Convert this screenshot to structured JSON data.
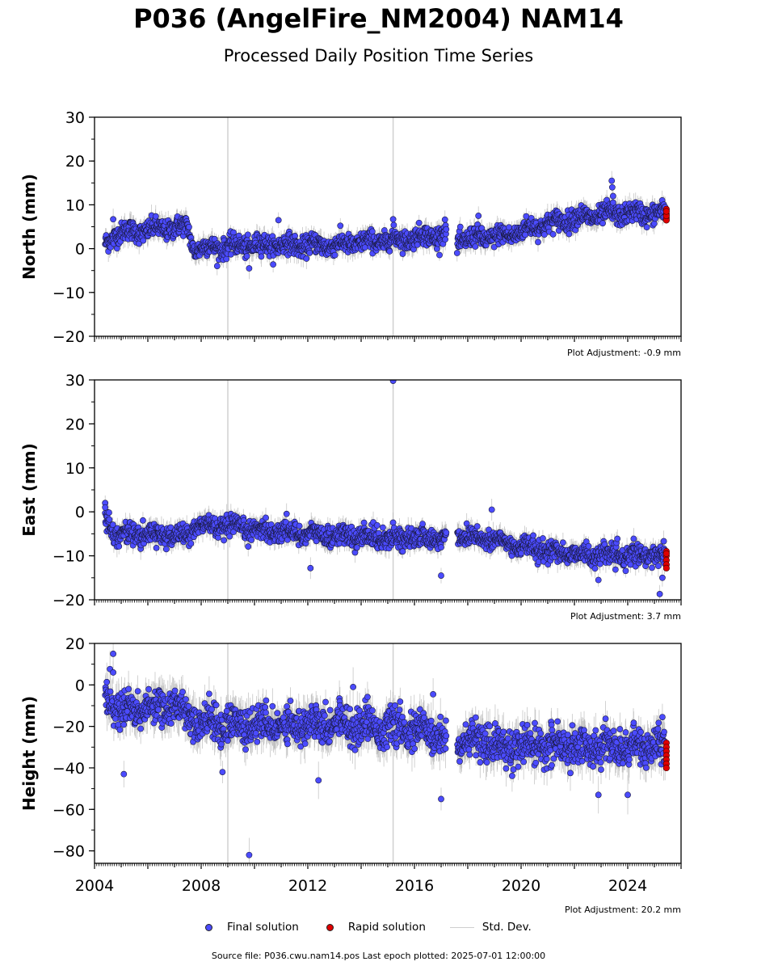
{
  "title": "P036 (AngelFire_NM2004) NAM14",
  "subtitle": "Processed Daily Position Time Series",
  "legend": {
    "final": "Final solution",
    "rapid": "Rapid solution",
    "std": "Std. Dev."
  },
  "source": "Source file: P036.cwu.nam14.pos  Last epoch plotted: 2025-07-01 12:00:00",
  "colors": {
    "final": "#4b4bff",
    "rapid": "#e00000",
    "std": "#b8b8b8",
    "marker_edge": "#1a1a40",
    "event_line": "#d0d0d0"
  },
  "chart_data": [
    {
      "type": "scatter",
      "ylabel": "North (mm)",
      "ylim": [
        -20,
        30
      ],
      "yticks": [
        -20,
        -10,
        0,
        10,
        20,
        30
      ],
      "xlim": [
        2004.0,
        2026.0
      ],
      "xticks": [
        2004,
        2008,
        2012,
        2016,
        2020,
        2024
      ],
      "show_xtick_labels": false,
      "adjustment": "Plot Adjustment: -0.9 mm",
      "event_lines": [
        2009.0,
        2015.2
      ],
      "gaps": [
        [
          2017.2,
          2017.6
        ]
      ],
      "trend": [
        [
          2004.4,
          1.0
        ],
        [
          2004.8,
          3.5
        ],
        [
          2006.5,
          4.5
        ],
        [
          2007.5,
          5.0
        ],
        [
          2007.7,
          0.0
        ],
        [
          2010.0,
          0.8
        ],
        [
          2013.0,
          0.8
        ],
        [
          2016.0,
          2.5
        ],
        [
          2017.2,
          3.5
        ],
        [
          2017.6,
          2.0
        ],
        [
          2019.5,
          3.0
        ],
        [
          2020.5,
          5.0
        ],
        [
          2022.0,
          7.0
        ],
        [
          2023.5,
          8.0
        ],
        [
          2025.4,
          8.0
        ]
      ],
      "noise": 1.6,
      "outliers": [
        [
          2004.7,
          6.7
        ],
        [
          2009.8,
          -4.5
        ],
        [
          2010.9,
          6.5
        ],
        [
          2015.2,
          6.7
        ],
        [
          2018.4,
          7.5
        ],
        [
          2023.4,
          15.5
        ],
        [
          2023.42,
          14.0
        ],
        [
          2023.45,
          12.0
        ],
        [
          2023.45,
          10.5
        ],
        [
          2017.6,
          -1.0
        ]
      ],
      "rapid": [
        [
          2025.45,
          9.0
        ],
        [
          2025.45,
          8.0
        ],
        [
          2025.45,
          7.0
        ],
        [
          2025.45,
          6.5
        ],
        [
          2025.45,
          7.5
        ],
        [
          2025.45,
          8.5
        ]
      ]
    },
    {
      "type": "scatter",
      "ylabel": "East (mm)",
      "ylim": [
        -20,
        30
      ],
      "yticks": [
        -20,
        -10,
        0,
        10,
        20,
        30
      ],
      "xlim": [
        2004.0,
        2026.0
      ],
      "xticks": [
        2004,
        2008,
        2012,
        2016,
        2020,
        2024
      ],
      "show_xtick_labels": false,
      "adjustment": "Plot Adjustment: 3.7 mm",
      "event_lines": [
        2009.0,
        2015.2
      ],
      "gaps": [
        [
          2017.2,
          2017.6
        ]
      ],
      "trend": [
        [
          2004.4,
          -1.0
        ],
        [
          2004.8,
          -5.0
        ],
        [
          2007.6,
          -5.5
        ],
        [
          2007.7,
          -3.0
        ],
        [
          2010.0,
          -4.0
        ],
        [
          2013.0,
          -5.5
        ],
        [
          2016.0,
          -6.0
        ],
        [
          2017.2,
          -6.0
        ],
        [
          2017.6,
          -5.0
        ],
        [
          2019.0,
          -6.5
        ],
        [
          2021.0,
          -9.0
        ],
        [
          2023.0,
          -10.0
        ],
        [
          2025.4,
          -10.0
        ]
      ],
      "noise": 1.6,
      "outliers": [
        [
          2004.4,
          2.0
        ],
        [
          2004.4,
          1.0
        ],
        [
          2015.2,
          29.8
        ],
        [
          2018.9,
          0.5
        ],
        [
          2012.1,
          -12.8
        ],
        [
          2017.0,
          -14.5
        ],
        [
          2022.9,
          -15.5
        ],
        [
          2025.2,
          -18.7
        ],
        [
          2025.3,
          -15.0
        ]
      ],
      "rapid": [
        [
          2025.45,
          -9.0
        ],
        [
          2025.45,
          -10.0
        ],
        [
          2025.45,
          -11.0
        ],
        [
          2025.45,
          -12.0
        ],
        [
          2025.45,
          -12.8
        ],
        [
          2025.45,
          -9.5
        ]
      ]
    },
    {
      "type": "scatter",
      "ylabel": "Height (mm)",
      "ylim": [
        -86,
        20
      ],
      "yticks": [
        -80,
        -60,
        -40,
        -20,
        0,
        20
      ],
      "xlim": [
        2004.0,
        2026.0
      ],
      "xticks": [
        2004,
        2008,
        2012,
        2016,
        2020,
        2024
      ],
      "show_xtick_labels": true,
      "adjustment": "Plot Adjustment: 20.2 mm",
      "event_lines": [
        2009.0,
        2015.2
      ],
      "gaps": [
        [
          2017.2,
          2017.6
        ]
      ],
      "trend": [
        [
          2004.4,
          -5.0
        ],
        [
          2005.0,
          -12.0
        ],
        [
          2007.0,
          -10.0
        ],
        [
          2008.0,
          -18.0
        ],
        [
          2010.0,
          -20.0
        ],
        [
          2013.0,
          -18.0
        ],
        [
          2016.0,
          -22.0
        ],
        [
          2017.2,
          -25.0
        ],
        [
          2017.6,
          -27.0
        ],
        [
          2020.0,
          -30.0
        ],
        [
          2023.0,
          -30.0
        ],
        [
          2025.4,
          -30.0
        ]
      ],
      "noise": 6.0,
      "outliers": [
        [
          2004.7,
          15.0
        ],
        [
          2004.7,
          6.0
        ],
        [
          2005.1,
          -43.0
        ],
        [
          2009.8,
          -82.0
        ],
        [
          2012.4,
          -46.0
        ],
        [
          2013.7,
          -1.0
        ],
        [
          2016.7,
          -4.5
        ],
        [
          2017.0,
          -55.0
        ],
        [
          2022.9,
          -53.0
        ],
        [
          2024.0,
          -53.0
        ],
        [
          2025.3,
          -15.5
        ],
        [
          2008.8,
          -42.0
        ]
      ],
      "rapid": [
        [
          2025.45,
          -28.0
        ],
        [
          2025.45,
          -30.0
        ],
        [
          2025.45,
          -32.0
        ],
        [
          2025.45,
          -34.0
        ],
        [
          2025.45,
          -36.0
        ],
        [
          2025.45,
          -38.0
        ],
        [
          2025.45,
          -40.0
        ]
      ]
    }
  ]
}
